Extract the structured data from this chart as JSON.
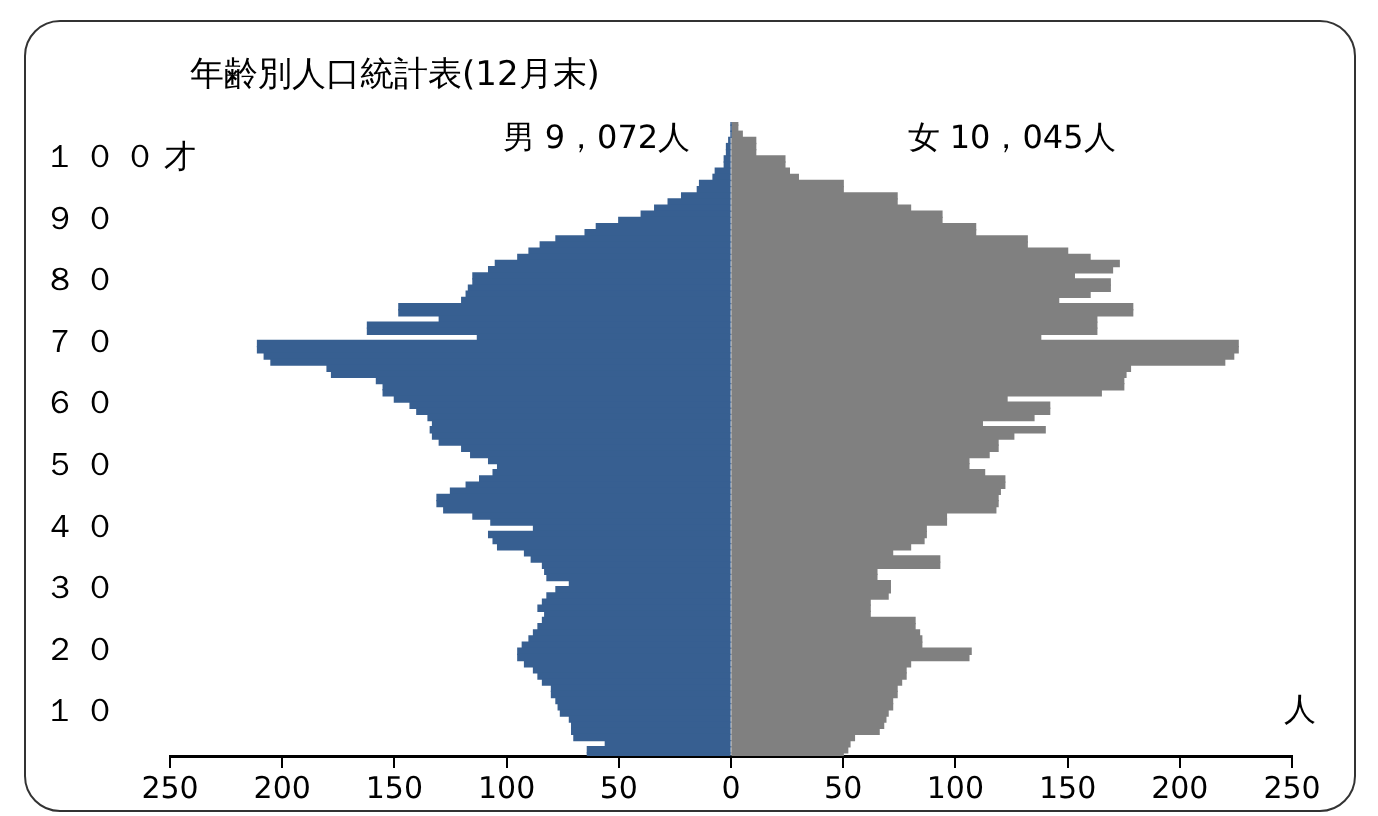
{
  "chart_data": {
    "type": "bar",
    "orientation": "horizontal",
    "stacked": true,
    "title": "年齢別人口統計表(12月末)",
    "xlabel": "人",
    "categories": [
      null,
      null,
      null,
      null,
      null,
      null,
      "１００才",
      null,
      null,
      null,
      null,
      null,
      null,
      null,
      null,
      null,
      "９０",
      null,
      null,
      null,
      null,
      null,
      null,
      null,
      null,
      null,
      "８０",
      null,
      null,
      null,
      null,
      null,
      null,
      null,
      null,
      null,
      "７０",
      null,
      null,
      null,
      null,
      null,
      null,
      null,
      null,
      null,
      "６０",
      null,
      null,
      null,
      null,
      null,
      null,
      null,
      null,
      null,
      "５０",
      null,
      null,
      null,
      null,
      null,
      null,
      null,
      null,
      null,
      "４０",
      null,
      null,
      null,
      null,
      null,
      null,
      null,
      null,
      null,
      "３０",
      null,
      null,
      null,
      null,
      null,
      null,
      null,
      null,
      null,
      "２０",
      null,
      null,
      null,
      null,
      null,
      null,
      null,
      null,
      null,
      "１０",
      null,
      null,
      null,
      null,
      null,
      null,
      null
    ],
    "series": [
      {
        "name": "男 9，072人",
        "color": "#375f91",
        "values": [
          0,
          0,
          0,
          -1,
          -2,
          -2,
          -3,
          -3,
          -7,
          -8,
          -14,
          -15,
          -22,
          -28,
          -34,
          -40,
          -50,
          -60,
          -65,
          -78,
          -85,
          -90,
          -95,
          -105,
          -108,
          -115,
          -115,
          -117,
          -118,
          -120,
          -148,
          -148,
          -130,
          -162,
          -162,
          -113,
          -211,
          -211,
          -208,
          -205,
          -180,
          -178,
          -158,
          -155,
          -155,
          -150,
          -143,
          -140,
          -135,
          -133,
          -134,
          -133,
          -130,
          -120,
          -116,
          -108,
          -104,
          -106,
          -112,
          -118,
          -125,
          -131,
          -131,
          -128,
          -115,
          -107,
          -88,
          -108,
          -106,
          -104,
          -92,
          -89,
          -84,
          -83,
          -82,
          -72,
          -78,
          -82,
          -84,
          -86,
          -83,
          -84,
          -86,
          -88,
          -90,
          -93,
          -95,
          -95,
          -92,
          -88,
          -86,
          -84,
          -80,
          -80,
          -78,
          -77,
          -76,
          -72,
          -71,
          -71,
          -70,
          -56,
          -64,
          -64
        ]
      },
      {
        "name": "女 10，045人",
        "color": "#808080",
        "values": [
          3,
          3,
          5,
          11,
          11,
          11,
          24,
          24,
          26,
          30,
          50,
          50,
          74,
          74,
          80,
          94,
          94,
          109,
          109,
          132,
          132,
          150,
          160,
          173,
          170,
          153,
          169,
          169,
          160,
          146,
          179,
          179,
          163,
          163,
          163,
          138,
          226,
          226,
          224,
          220,
          178,
          176,
          175,
          175,
          165,
          123,
          142,
          142,
          135,
          112,
          140,
          126,
          119,
          119,
          115,
          106,
          106,
          113,
          122,
          122,
          120,
          119,
          119,
          118,
          96,
          96,
          87,
          87,
          86,
          80,
          72,
          93,
          93,
          65,
          65,
          71,
          71,
          70,
          62,
          62,
          62,
          82,
          82,
          84,
          85,
          85,
          107,
          106,
          80,
          78,
          78,
          76,
          74,
          74,
          72,
          72,
          70,
          69,
          68,
          66,
          55,
          53,
          52,
          50
        ]
      }
    ],
    "xlim": [
      -250,
      250
    ],
    "xticks": [
      {
        "value": -250,
        "label": "250"
      },
      {
        "value": -200,
        "label": "200"
      },
      {
        "value": -150,
        "label": "150"
      },
      {
        "value": -100,
        "label": "100"
      },
      {
        "value": -50,
        "label": "50"
      },
      0,
      50,
      100,
      150,
      200,
      250
    ],
    "grid": false,
    "legend": false
  }
}
